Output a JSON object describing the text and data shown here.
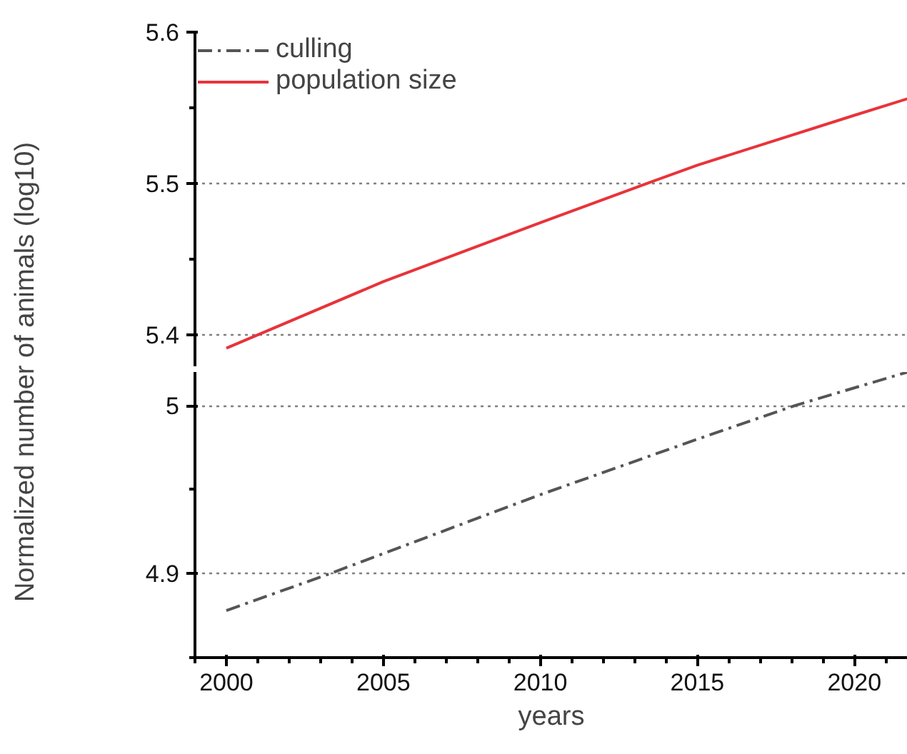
{
  "chart_data": [
    {
      "type": "line",
      "ylabel": "Normalized number of animals (log10)",
      "x": [
        2000,
        2005,
        2010,
        2013.4,
        2015,
        2020,
        2021.7
      ],
      "xlim": [
        1999,
        2021.7
      ],
      "ylim": [
        5.379,
        5.6
      ],
      "yticks": [
        5.4,
        5.5,
        5.6
      ],
      "tick_labels": "y",
      "grid": "y",
      "legend": "top left",
      "series": [
        {
          "name": "culling",
          "color": "#555555",
          "line_style": "dashdot",
          "values": [
            null,
            null,
            null,
            null,
            null,
            null,
            null
          ]
        },
        {
          "name": "population size",
          "color": "#e8333a",
          "line_style": "solid",
          "values": [
            5.391,
            5.435,
            5.474,
            5.5,
            5.512,
            5.545,
            5.556
          ]
        }
      ]
    },
    {
      "type": "line",
      "xlabel": "years",
      "x": [
        2000,
        2003.3,
        2010,
        2015,
        2018.1,
        2021.7
      ],
      "xlim": [
        1999,
        2021.7
      ],
      "xticks": [
        2000,
        2005,
        2010,
        2015,
        2020
      ],
      "ylim": [
        4.85,
        5.02
      ],
      "yticks": [
        4.9,
        5
      ],
      "grid": "y",
      "series": [
        {
          "color": "#555555",
          "line_style": "dashdot",
          "values": [
            4.878,
            4.9,
            4.947,
            4.98,
            5.0,
            5.02
          ]
        }
      ]
    }
  ]
}
